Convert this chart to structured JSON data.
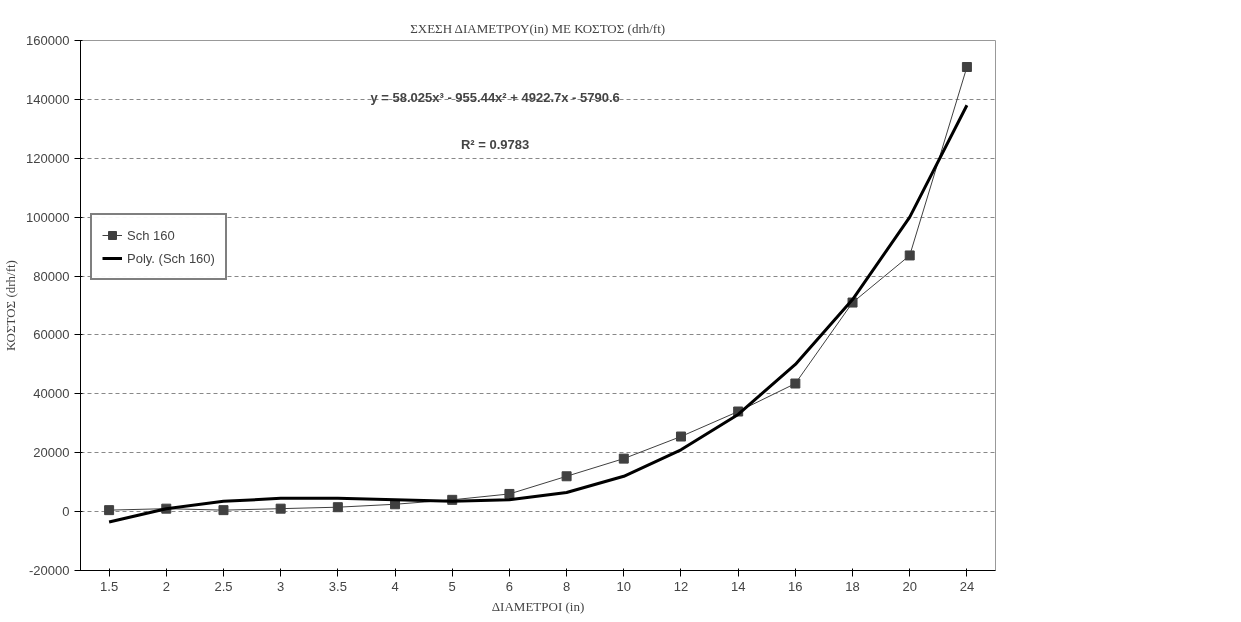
{
  "chart_data": {
    "type": "line",
    "title": "ΣΧΕΣΗ ΔΙΑΜΕΤΡΟΥ(in) ΜΕ ΚΟΣΤΟΣ (drh/ft)",
    "xlabel": "ΔΙΑΜΕΤΡΟΙ (in)",
    "ylabel": "ΚΟΣΤΟΣ (drh/ft)",
    "categories": [
      "1.5",
      "2",
      "2.5",
      "3",
      "3.5",
      "4",
      "5",
      "6",
      "8",
      "10",
      "12",
      "14",
      "16",
      "18",
      "20",
      "24"
    ],
    "series": [
      {
        "name": "Sch 160",
        "color": "#404040",
        "marker": "square",
        "values": [
          500,
          1000,
          500,
          1000,
          1500,
          2500,
          4000,
          6000,
          12000,
          18000,
          25500,
          34000,
          43500,
          71000,
          87000,
          151000
        ]
      },
      {
        "name": "Poly. (Sch 160)",
        "color": "#000000",
        "marker": "none",
        "values": [
          -3500,
          1000,
          3500,
          4500,
          4500,
          4000,
          3500,
          4000,
          6500,
          12000,
          21000,
          33000,
          50000,
          72000,
          100000,
          138000
        ]
      }
    ],
    "annotations": [
      "y = 58.025x³ - 955.44x² + 4922.7x - 5790.6",
      "R² = 0.9783"
    ],
    "ylim": [
      -20000,
      160000
    ],
    "yticks": [
      -20000,
      0,
      20000,
      40000,
      60000,
      80000,
      100000,
      120000,
      140000,
      160000
    ],
    "grid": "y",
    "legend": "left",
    "line_style": "solid"
  }
}
